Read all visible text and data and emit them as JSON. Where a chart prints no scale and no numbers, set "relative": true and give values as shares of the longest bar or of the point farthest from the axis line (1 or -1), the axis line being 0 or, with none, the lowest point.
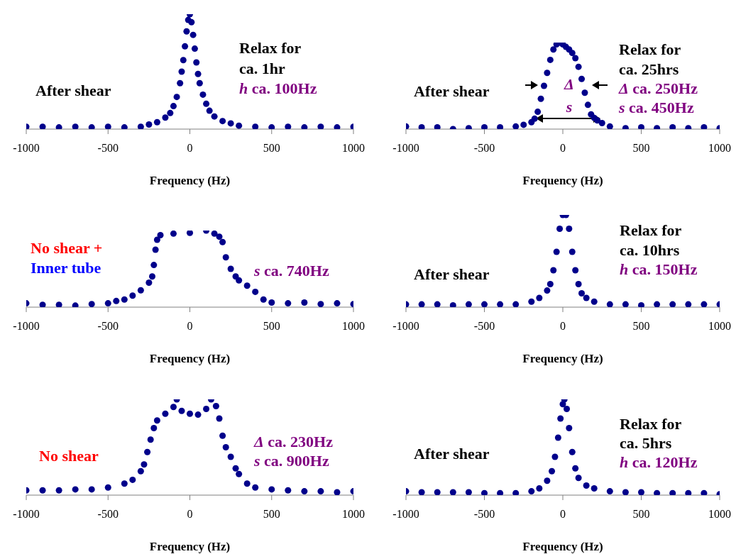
{
  "chart_data": [
    {
      "type": "scatter",
      "xlabel": "Frequency (Hz)",
      "color": "#00008b",
      "marker": "circle",
      "relative": true,
      "xlim": [
        -1000,
        1000
      ],
      "xticks": [
        -1000,
        -500,
        0,
        500,
        1000
      ],
      "annotations": [
        "After shear",
        "Relax for",
        "ca. 1hr",
        "h ca. 100Hz"
      ],
      "x": [
        -1000,
        -900,
        -800,
        -700,
        -600,
        -500,
        -400,
        -300,
        -250,
        -200,
        -150,
        -120,
        -100,
        -80,
        -60,
        -50,
        -40,
        -30,
        -20,
        -10,
        0,
        10,
        20,
        30,
        40,
        50,
        60,
        80,
        100,
        120,
        150,
        200,
        250,
        300,
        400,
        500,
        600,
        700,
        800,
        900,
        1000
      ],
      "values": [
        0.02,
        0.02,
        0.015,
        0.02,
        0.015,
        0.02,
        0.015,
        0.02,
        0.04,
        0.06,
        0.1,
        0.14,
        0.2,
        0.28,
        0.4,
        0.5,
        0.6,
        0.72,
        0.85,
        0.95,
        1,
        0.93,
        0.82,
        0.7,
        0.58,
        0.48,
        0.4,
        0.3,
        0.22,
        0.16,
        0.11,
        0.07,
        0.05,
        0.03,
        0.02,
        0.015,
        0.02,
        0.015,
        0.02,
        0.015,
        0.02
      ]
    },
    {
      "type": "scatter",
      "xlabel": "Frequency (Hz)",
      "color": "#00008b",
      "marker": "circle",
      "relative": true,
      "xlim": [
        -1000,
        1000
      ],
      "xticks": [
        -1000,
        -500,
        0,
        500,
        1000
      ],
      "annotations": [
        "After shear",
        "Relax for",
        "ca. 25hrs",
        "Δ ca. 250Hz",
        "s ca. 450Hz",
        "Δ",
        "s"
      ],
      "x": [
        -1000,
        -900,
        -800,
        -700,
        -600,
        -500,
        -400,
        -300,
        -250,
        -200,
        -180,
        -160,
        -140,
        -120,
        -100,
        -80,
        -60,
        -40,
        -20,
        0,
        20,
        40,
        60,
        80,
        100,
        120,
        140,
        160,
        180,
        200,
        220,
        250,
        300,
        400,
        500,
        600,
        700,
        800,
        900,
        1000
      ],
      "values": [
        0.03,
        0.02,
        0.02,
        0.0,
        0.01,
        0.02,
        0.02,
        0.03,
        0.05,
        0.08,
        0.12,
        0.2,
        0.35,
        0.5,
        0.65,
        0.8,
        0.92,
        0.98,
        1,
        0.98,
        0.95,
        0.92,
        0.88,
        0.82,
        0.72,
        0.58,
        0.42,
        0.28,
        0.17,
        0.13,
        0.1,
        0.07,
        0.03,
        0.01,
        0.02,
        0.01,
        0.02,
        0.01,
        0.02,
        0.01
      ]
    },
    {
      "type": "scatter",
      "xlabel": "Frequency (Hz)",
      "color": "#00008b",
      "marker": "circle",
      "relative": true,
      "xlim": [
        -1000,
        1000
      ],
      "xticks": [
        -1000,
        -500,
        0,
        500,
        1000
      ],
      "annotations": [
        "No shear +",
        "Inner tube",
        "s ca. 740Hz"
      ],
      "x": [
        -1000,
        -900,
        -800,
        -700,
        -600,
        -500,
        -450,
        -400,
        -350,
        -300,
        -250,
        -230,
        -220,
        -210,
        -200,
        -180,
        -100,
        0,
        100,
        150,
        180,
        200,
        220,
        250,
        280,
        300,
        350,
        400,
        450,
        500,
        600,
        700,
        800,
        900,
        1000
      ],
      "values": [
        0.05,
        0.03,
        0.03,
        0.02,
        0.04,
        0.05,
        0.08,
        0.1,
        0.15,
        0.22,
        0.32,
        0.4,
        0.55,
        0.75,
        0.88,
        0.94,
        0.96,
        0.97,
        1,
        0.96,
        0.92,
        0.85,
        0.65,
        0.5,
        0.4,
        0.35,
        0.28,
        0.2,
        0.1,
        0.06,
        0.05,
        0.06,
        0.04,
        0.05,
        0.04
      ]
    },
    {
      "type": "scatter",
      "xlabel": "Frequency (Hz)",
      "color": "#00008b",
      "marker": "circle",
      "relative": true,
      "xlim": [
        -1000,
        1000
      ],
      "xticks": [
        -1000,
        -500,
        0,
        500,
        1000
      ],
      "annotations": [
        "After shear",
        "Relax for",
        "ca. 10hrs",
        "h ca. 150Hz"
      ],
      "x": [
        -1000,
        -900,
        -800,
        -700,
        -600,
        -500,
        -400,
        -300,
        -200,
        -150,
        -100,
        -80,
        -60,
        -40,
        -20,
        0,
        20,
        40,
        60,
        80,
        100,
        120,
        150,
        200,
        300,
        400,
        500,
        600,
        700,
        800,
        900,
        1000
      ],
      "values": [
        0.03,
        0.03,
        0.03,
        0.02,
        0.03,
        0.03,
        0.03,
        0.03,
        0.06,
        0.1,
        0.18,
        0.25,
        0.4,
        0.6,
        0.85,
        1,
        1,
        0.85,
        0.6,
        0.4,
        0.25,
        0.15,
        0.1,
        0.06,
        0.03,
        0.03,
        0.02,
        0.03,
        0.03,
        0.03,
        0.03,
        0.03
      ]
    },
    {
      "type": "scatter",
      "xlabel": "Frequency (Hz)",
      "color": "#00008b",
      "marker": "circle",
      "relative": true,
      "xlim": [
        -1000,
        1000
      ],
      "xticks": [
        -1000,
        -500,
        0,
        500,
        1000
      ],
      "annotations": [
        "No shear",
        "Δ ca. 230Hz",
        "s ca. 900Hz"
      ],
      "x": [
        -1000,
        -900,
        -800,
        -700,
        -600,
        -500,
        -400,
        -350,
        -300,
        -280,
        -260,
        -240,
        -220,
        -200,
        -150,
        -100,
        -80,
        -50,
        0,
        50,
        100,
        130,
        160,
        180,
        200,
        220,
        250,
        280,
        300,
        350,
        400,
        500,
        600,
        700,
        800,
        900,
        1000
      ],
      "values": [
        0.05,
        0.05,
        0.05,
        0.06,
        0.06,
        0.08,
        0.12,
        0.16,
        0.25,
        0.32,
        0.45,
        0.58,
        0.7,
        0.78,
        0.85,
        0.92,
        1,
        0.88,
        0.85,
        0.84,
        0.9,
        1,
        0.93,
        0.8,
        0.62,
        0.5,
        0.4,
        0.28,
        0.22,
        0.12,
        0.08,
        0.06,
        0.05,
        0.04,
        0.04,
        0.03,
        0.04
      ]
    },
    {
      "type": "scatter",
      "xlabel": "Frequency (Hz)",
      "color": "#00008b",
      "marker": "circle",
      "relative": true,
      "xlim": [
        -1000,
        1000
      ],
      "xticks": [
        -1000,
        -500,
        0,
        500,
        1000
      ],
      "annotations": [
        "After shear",
        "Relax for",
        "ca. 5hrs",
        "h ca. 120Hz"
      ],
      "x": [
        -1000,
        -900,
        -800,
        -700,
        -600,
        -500,
        -400,
        -300,
        -200,
        -150,
        -100,
        -70,
        -50,
        -30,
        -15,
        0,
        10,
        25,
        40,
        60,
        80,
        100,
        150,
        200,
        300,
        400,
        500,
        600,
        700,
        800,
        900,
        1000
      ],
      "values": [
        0.04,
        0.03,
        0.03,
        0.03,
        0.03,
        0.02,
        0.02,
        0.02,
        0.04,
        0.07,
        0.15,
        0.25,
        0.4,
        0.6,
        0.8,
        0.95,
        1,
        0.9,
        0.7,
        0.45,
        0.28,
        0.18,
        0.1,
        0.07,
        0.04,
        0.03,
        0.03,
        0.02,
        0.02,
        0.02,
        0.02,
        0.01
      ]
    }
  ]
}
